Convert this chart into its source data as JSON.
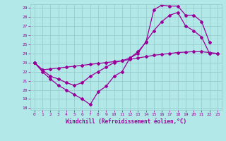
{
  "xlabel": "Windchill (Refroidissement éolien,°C)",
  "line_color": "#990099",
  "bg_color": "#b3e8e8",
  "grid_color": "#99cccc",
  "xlim": [
    -0.5,
    23.5
  ],
  "ylim": [
    17.8,
    29.4
  ],
  "yticks": [
    18,
    19,
    20,
    21,
    22,
    23,
    24,
    25,
    26,
    27,
    28,
    29
  ],
  "xticks": [
    0,
    1,
    2,
    3,
    4,
    5,
    6,
    7,
    8,
    9,
    10,
    11,
    12,
    13,
    14,
    15,
    16,
    17,
    18,
    19,
    20,
    21,
    22,
    23
  ],
  "line1_x": [
    0,
    1,
    2,
    3,
    4,
    5,
    6,
    7,
    8,
    9,
    10,
    11,
    12,
    13,
    14,
    15,
    16,
    17,
    18,
    19,
    20,
    21,
    22
  ],
  "line1_y": [
    23,
    22,
    21.2,
    20.5,
    20.0,
    19.5,
    19.0,
    18.4,
    19.8,
    20.4,
    21.5,
    22.0,
    23.5,
    24.2,
    25.2,
    28.8,
    29.3,
    29.2,
    29.2,
    28.2,
    28.2,
    27.5,
    25.2
  ],
  "line2_x": [
    0,
    1,
    2,
    3,
    4,
    5,
    6,
    7,
    8,
    9,
    10,
    11,
    12,
    13,
    14,
    15,
    16,
    17,
    18,
    19,
    20,
    21,
    22,
    23
  ],
  "line2_y": [
    23,
    22.2,
    21.5,
    21.2,
    20.8,
    20.5,
    20.8,
    21.5,
    22.0,
    22.5,
    23.0,
    23.2,
    23.5,
    24.0,
    25.3,
    26.5,
    27.5,
    28.2,
    28.5,
    27.0,
    26.5,
    25.8,
    24.0,
    24.0
  ],
  "line3_x": [
    0,
    1,
    2,
    3,
    4,
    5,
    6,
    7,
    8,
    9,
    10,
    11,
    12,
    13,
    14,
    15,
    16,
    17,
    18,
    19,
    20,
    21,
    22,
    23
  ],
  "line3_y": [
    23,
    22.2,
    22.3,
    22.4,
    22.5,
    22.6,
    22.7,
    22.8,
    22.9,
    23.0,
    23.1,
    23.2,
    23.35,
    23.5,
    23.65,
    23.8,
    23.9,
    24.0,
    24.1,
    24.15,
    24.2,
    24.2,
    24.1,
    24.0
  ]
}
